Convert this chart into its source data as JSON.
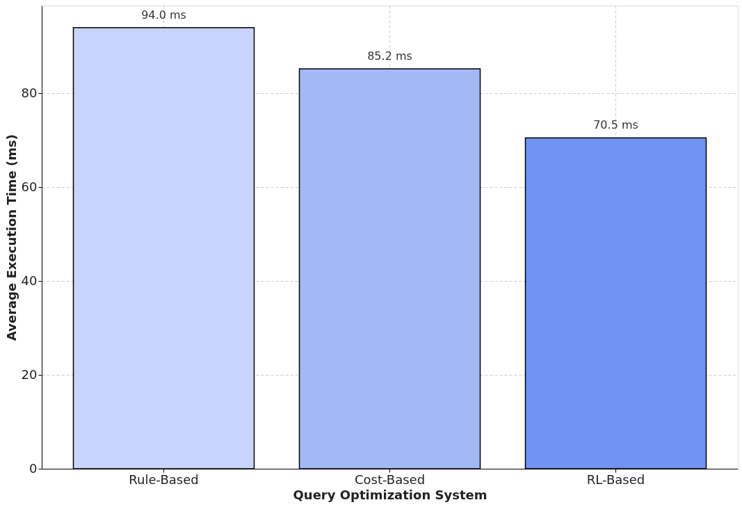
{
  "chart_data": {
    "type": "bar",
    "xlabel": "Query Optimization System",
    "ylabel": "Average Execution Time (ms)",
    "categories": [
      "Rule-Based",
      "Cost-Based",
      "RL-Based"
    ],
    "values": [
      94.0,
      85.2,
      70.5
    ],
    "colors": [
      "#c8d4fc",
      "#a1b9f5",
      "#6f93f0"
    ],
    "value_labels": [
      "94.0 ms",
      "85.2 ms",
      "70.5 ms"
    ],
    "ylim": [
      0,
      98.7
    ],
    "yticks": [
      0,
      20,
      40,
      60,
      80
    ],
    "grid": true
  }
}
